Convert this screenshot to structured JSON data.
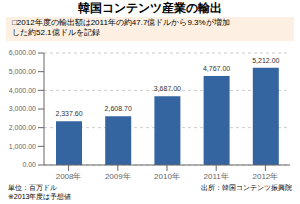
{
  "chart_data": {
    "type": "bar",
    "title": "韓国コンテンツ産業の輸出",
    "subtitle": "□2012年度の輸出額は2011年の約47.7億ドルから9.3%が増加\nした約52.1億ドルを記録",
    "categories": [
      "2008年",
      "2009年",
      "2010年",
      "2011年",
      "2012年"
    ],
    "values": [
      2337.6,
      2608.7,
      3687.0,
      4767.0,
      5212.0
    ],
    "value_labels": [
      "2,337.60",
      "2,608.70",
      "3,687.00",
      "4,767.00",
      "5,212.00"
    ],
    "data_labels": true,
    "color": "#3565a0",
    "ylim": [
      0,
      6000
    ],
    "yticks": [
      {
        "value": 0,
        "label": "0.00"
      },
      {
        "value": 1000,
        "label": "1,000.00"
      },
      {
        "value": 2000,
        "label": "2,000.00"
      },
      {
        "value": 3000,
        "label": "3,000.00"
      },
      {
        "value": 4000,
        "label": "4,000.00"
      },
      {
        "value": 5000,
        "label": "5,000.00"
      },
      {
        "value": 6000,
        "label": "6,000.00"
      }
    ],
    "grid": true,
    "annotations": [
      "単位：百万ドル\n※2013年度は予想値",
      "出所：韓国コンテンツ振興院"
    ]
  }
}
